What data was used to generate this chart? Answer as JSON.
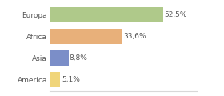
{
  "categories": [
    "America",
    "Asia",
    "Africa",
    "Europa"
  ],
  "values": [
    5.1,
    8.8,
    33.6,
    52.5
  ],
  "labels": [
    "5,1%",
    "8,8%",
    "33,6%",
    "52,5%"
  ],
  "bar_colors": [
    "#f0d57a",
    "#7b8ec8",
    "#e8b07a",
    "#afc98a"
  ],
  "xlim": [
    0,
    68
  ],
  "background_color": "#ffffff",
  "bar_height": 0.72,
  "label_fontsize": 6.5,
  "tick_fontsize": 6.5,
  "grid_color": "#d8d8d8",
  "text_color": "#555555"
}
